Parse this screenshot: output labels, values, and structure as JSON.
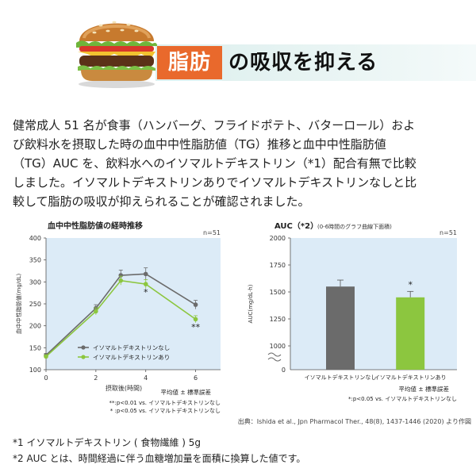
{
  "header": {
    "tag": "脂肪",
    "title": "の吸収を抑える"
  },
  "body": {
    "lines": [
      "健常成人 51 名が食事（ハンバーグ、フライドポテト、バターロール）およ",
      "び飲料水を摂取した時の血中中性脂肪値（TG）推移と血中中性脂肪値",
      "（TG）AUC を、飲料水へのイソマルトデキストリン（*1）配合有無で比較",
      "しました。イソマルトデキストリンありでイソマルトデキストリンなしと比",
      "較して脂肪の吸収が抑えられることが確認されました。"
    ]
  },
  "chart_data": [
    {
      "type": "line",
      "title": "血中中性脂肪値の経時推移",
      "n_label": "n=51",
      "xlabel": "摂取後(時間)",
      "ylabel": "血中中性脂肪値(mg/dL)",
      "xlim": [
        0,
        7
      ],
      "ylim": [
        100,
        400
      ],
      "xticks": [
        0,
        2,
        4,
        6
      ],
      "yticks": [
        100,
        150,
        200,
        250,
        300,
        350,
        400
      ],
      "series": [
        {
          "name": "イソマルトデキストリンなし",
          "color": "#6b6b6b",
          "x": [
            0,
            2,
            3,
            4,
            6
          ],
          "y": [
            133,
            240,
            315,
            318,
            248
          ],
          "err": [
            4,
            8,
            12,
            14,
            10
          ]
        },
        {
          "name": "イソマルトデキストリンあり",
          "color": "#8cc63f",
          "x": [
            0,
            2,
            3,
            4,
            6
          ],
          "y": [
            130,
            233,
            303,
            295,
            215
          ],
          "err": [
            4,
            8,
            10,
            10,
            8
          ]
        }
      ],
      "annotations": [
        {
          "x": 4,
          "y": 270,
          "text": "*"
        },
        {
          "x": 6,
          "y": 190,
          "text": "**"
        }
      ],
      "legend_placement": "bottom-right",
      "stats_note": "平均値 ± 標準誤差",
      "sig_notes": [
        "**:p<0.01 vs. イソマルトデキストリンなし",
        "*  :p<0.05 vs. イソマルトデキストリンなし"
      ],
      "background": "#dcebf7"
    },
    {
      "type": "bar",
      "title": "AUC（*2）",
      "title_sub": "(0-6時間のグラフ曲線下面積)",
      "n_label": "n=51",
      "ylabel": "AUC(mg/dL·h)",
      "categories": [
        "イソマルトデキストリンなし",
        "イソマルトデキストリンあり"
      ],
      "values": [
        1550,
        1450
      ],
      "err": [
        60,
        55
      ],
      "colors": [
        "#6b6b6b",
        "#8cc63f"
      ],
      "ylim": [
        750,
        2000
      ],
      "axis_break": true,
      "yticks": [
        1000,
        1250,
        1500,
        1750,
        2000
      ],
      "annotations": [
        {
          "category": 1,
          "text": "*"
        }
      ],
      "stats_note": "平均値 ± 標準誤差",
      "sig_notes": [
        "*:p<0.05 vs. イソマルトデキストリンなし"
      ],
      "background": "#dcebf7"
    }
  ],
  "source": "出典：Ishida et al., Jpn Pharmacol Ther., 48(8), 1437-1446 (2020) より作図",
  "footnotes": [
    "*1 イソマルトデキストリン ( 食物繊維 ) 5g",
    "*2 AUC とは、時間経過に伴う血糖増加量を面積に換算した値です。"
  ]
}
